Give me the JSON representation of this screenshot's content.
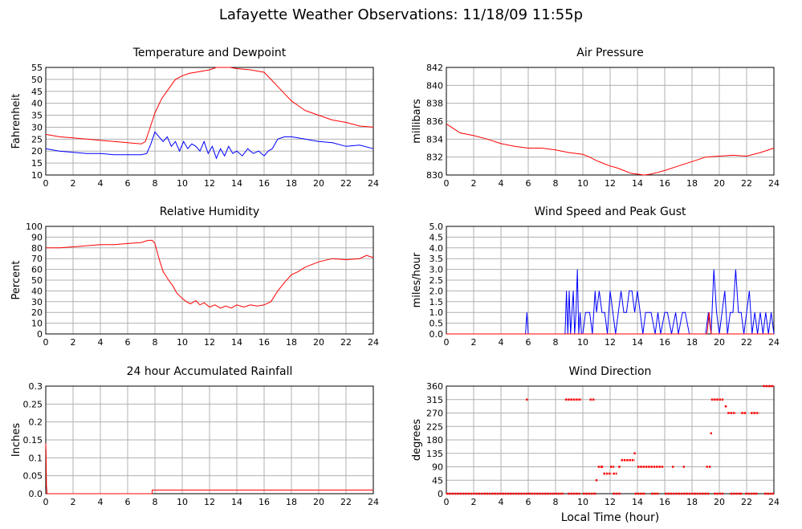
{
  "page_title": "Lafayette Weather Observations: 11/18/09 11:55p",
  "shared_xlabel": "Local Time (hour)",
  "colors": {
    "red": "#ff0000",
    "blue": "#0000ff",
    "grid": "#b0b0b0"
  },
  "chart_data": [
    {
      "id": "temp",
      "type": "line",
      "title": "Temperature and Dewpoint",
      "xlabel": "",
      "ylabel": "Fahrenheit",
      "xlim": [
        0,
        24
      ],
      "ylim": [
        10,
        55
      ],
      "xticks": [
        "0",
        "2",
        "4",
        "6",
        "8",
        "10",
        "12",
        "14",
        "16",
        "18",
        "20",
        "22",
        "24"
      ],
      "yticks": [
        "10",
        "15",
        "20",
        "25",
        "30",
        "35",
        "40",
        "45",
        "50",
        "55"
      ],
      "series": [
        {
          "color": "#ff0000",
          "x": [
            0,
            1,
            2,
            3,
            4,
            5,
            6,
            7,
            7.3,
            7.6,
            8,
            8.5,
            9,
            9.5,
            10,
            10.5,
            11,
            12,
            12.5,
            13,
            13.5,
            14,
            15,
            16,
            16.5,
            17,
            17.5,
            18,
            19,
            20,
            21,
            22,
            23,
            24
          ],
          "y": [
            27,
            26,
            25.5,
            25,
            24.5,
            24,
            23.5,
            23,
            24,
            29,
            36,
            42,
            46,
            50,
            51.5,
            52.5,
            53,
            54,
            55,
            55,
            55,
            54.5,
            54,
            53,
            50,
            47,
            44,
            41,
            37,
            35,
            33,
            32,
            30.5,
            30
          ]
        },
        {
          "color": "#0000ff",
          "x": [
            0,
            1,
            2,
            3,
            4,
            5,
            6,
            7,
            7.4,
            7.7,
            8,
            8.3,
            8.6,
            8.9,
            9.2,
            9.5,
            9.8,
            10.1,
            10.4,
            10.7,
            11,
            11.3,
            11.6,
            11.9,
            12.2,
            12.5,
            12.8,
            13.1,
            13.4,
            13.7,
            14,
            14.4,
            14.8,
            15.2,
            15.6,
            16,
            16.3,
            16.6,
            17,
            17.5,
            18,
            19,
            20,
            21,
            22,
            23,
            24
          ],
          "y": [
            21,
            20,
            19.5,
            19,
            19,
            18.5,
            18.5,
            18.5,
            19,
            23,
            28,
            26,
            24,
            26,
            22,
            24,
            20,
            24,
            21,
            23,
            22,
            20,
            24,
            19,
            22,
            17,
            21,
            18,
            22,
            19,
            20,
            18,
            21,
            19,
            20,
            18,
            20,
            21,
            25,
            26,
            26,
            25,
            24,
            23.5,
            22,
            22.5,
            21
          ]
        }
      ]
    },
    {
      "id": "pressure",
      "type": "line",
      "title": "Air Pressure",
      "xlabel": "",
      "ylabel": "millibars",
      "xlim": [
        0,
        24
      ],
      "ylim": [
        830,
        842
      ],
      "xticks": [
        "0",
        "2",
        "4",
        "6",
        "8",
        "10",
        "12",
        "14",
        "16",
        "18",
        "20",
        "22",
        "24"
      ],
      "yticks": [
        "830",
        "832",
        "834",
        "836",
        "838",
        "840",
        "842"
      ],
      "series": [
        {
          "color": "#ff0000",
          "x": [
            0,
            0.5,
            1,
            2,
            3,
            4,
            5,
            6,
            7,
            8,
            9,
            10,
            10.5,
            11,
            11.5,
            12,
            12.5,
            13,
            13.5,
            14,
            14.5,
            15,
            15.5,
            16,
            17,
            18,
            19,
            20,
            21,
            22,
            23,
            24
          ],
          "y": [
            835.7,
            835.2,
            834.7,
            834.4,
            834,
            833.5,
            833.2,
            833,
            833,
            832.8,
            832.5,
            832.3,
            832,
            831.6,
            831.3,
            831,
            830.8,
            830.5,
            830.2,
            830.1,
            830,
            830.1,
            830.3,
            830.5,
            831,
            831.5,
            832,
            832.1,
            832.2,
            832.1,
            832.5,
            833
          ]
        }
      ]
    },
    {
      "id": "humidity",
      "type": "line",
      "title": "Relative Humidity",
      "xlabel": "",
      "ylabel": "Percent",
      "xlim": [
        0,
        24
      ],
      "ylim": [
        0,
        100
      ],
      "xticks": [
        "0",
        "2",
        "4",
        "6",
        "8",
        "10",
        "12",
        "14",
        "16",
        "18",
        "20",
        "22",
        "24"
      ],
      "yticks": [
        "0",
        "10",
        "20",
        "30",
        "40",
        "50",
        "60",
        "70",
        "80",
        "90",
        "100"
      ],
      "series": [
        {
          "color": "#ff0000",
          "x": [
            0,
            1,
            2,
            3,
            4,
            5,
            6,
            7,
            7.5,
            7.8,
            8,
            8.3,
            8.6,
            9,
            9.3,
            9.6,
            10,
            10.3,
            10.6,
            11,
            11.3,
            11.6,
            12,
            12.4,
            12.8,
            13.2,
            13.6,
            14,
            14.5,
            15,
            15.5,
            16,
            16.5,
            17,
            17.5,
            18,
            18.5,
            19,
            20,
            21,
            22,
            23,
            23.5,
            24
          ],
          "y": [
            80,
            80,
            81,
            82,
            83,
            83,
            84,
            85,
            87,
            87,
            84,
            70,
            58,
            50,
            45,
            38,
            33,
            30,
            28,
            31,
            27,
            29,
            25,
            27,
            24,
            26,
            24,
            27,
            25,
            27,
            26,
            27,
            30,
            40,
            48,
            55,
            58,
            62,
            67,
            70,
            69,
            70,
            73,
            71
          ]
        }
      ]
    },
    {
      "id": "wind",
      "type": "line",
      "title": "Wind Speed and Peak Gust",
      "xlabel": "",
      "ylabel": "miles/hour",
      "xlim": [
        0,
        24
      ],
      "ylim": [
        0,
        5
      ],
      "xticks": [
        "0",
        "2",
        "4",
        "6",
        "8",
        "10",
        "12",
        "14",
        "16",
        "18",
        "20",
        "22",
        "24"
      ],
      "yticks": [
        "0.0",
        "0.5",
        "1.0",
        "1.5",
        "2.0",
        "2.5",
        "3.0",
        "3.5",
        "4.0",
        "4.5",
        "5.0"
      ],
      "series": [
        {
          "color": "#0000ff",
          "x": [
            0,
            5.8,
            5.9,
            6.0,
            8.7,
            8.8,
            8.9,
            9.0,
            9.1,
            9.2,
            9.3,
            9.4,
            9.5,
            9.6,
            9.7,
            9.8,
            9.9,
            10.0,
            10.2,
            10.5,
            10.7,
            10.8,
            10.9,
            11.0,
            11.2,
            11.4,
            11.6,
            11.8,
            12.0,
            12.2,
            12.4,
            12.6,
            12.8,
            13.0,
            13.2,
            13.4,
            13.6,
            13.8,
            14.0,
            14.2,
            14.4,
            14.6,
            15.0,
            15.3,
            15.5,
            15.7,
            16.0,
            16.2,
            16.5,
            16.8,
            17.0,
            17.3,
            17.5,
            17.8,
            19.0,
            19.2,
            19.4,
            19.6,
            19.8,
            20.0,
            20.2,
            20.4,
            20.6,
            20.8,
            21.0,
            21.2,
            21.4,
            21.6,
            21.8,
            22.0,
            22.2,
            22.4,
            22.6,
            22.8,
            23.0,
            23.2,
            23.4,
            23.6,
            23.8,
            24.0
          ],
          "y": [
            0,
            0,
            1,
            0,
            0,
            2,
            0,
            2,
            0,
            1,
            2,
            0,
            1,
            3,
            0,
            1,
            0,
            0,
            1,
            1,
            0,
            1,
            2,
            1,
            2,
            1,
            1,
            0,
            2,
            1,
            0,
            1,
            2,
            1,
            1,
            2,
            2,
            1,
            2,
            1,
            0,
            1,
            1,
            0,
            1,
            0,
            1,
            1,
            0,
            1,
            0,
            1,
            1,
            0,
            0,
            1,
            0,
            3,
            1,
            0,
            1,
            2,
            0,
            1,
            1,
            3,
            1,
            1,
            0,
            1,
            2,
            0,
            1,
            0,
            1,
            0,
            1,
            0,
            1,
            0
          ]
        },
        {
          "color": "#ff0000",
          "x": [
            0,
            19.1,
            19.25,
            19.4,
            24
          ],
          "y": [
            0,
            0,
            1,
            0,
            0
          ]
        }
      ]
    },
    {
      "id": "rain",
      "type": "line",
      "title": "24 hour Accumulated Rainfall",
      "xlabel": "",
      "ylabel": "Inches",
      "xlim": [
        0,
        24
      ],
      "ylim": [
        0,
        0.3
      ],
      "xticks": [
        "0",
        "2",
        "4",
        "6",
        "8",
        "10",
        "12",
        "14",
        "16",
        "18",
        "20",
        "22",
        "24"
      ],
      "yticks": [
        "0.0",
        "0.05",
        "0.1",
        "0.15",
        "0.2",
        "0.25",
        "0.3"
      ],
      "series": [
        {
          "color": "#ff0000",
          "x": [
            0,
            0.02,
            0.05,
            0.1,
            7.8,
            7.8,
            24
          ],
          "y": [
            0.14,
            0.12,
            0.02,
            0,
            0,
            0.01,
            0.01
          ]
        }
      ]
    },
    {
      "id": "direction",
      "type": "scatter",
      "title": "Wind Direction",
      "xlabel": "Local Time (hour)",
      "ylabel": "degrees",
      "xlim": [
        0,
        24
      ],
      "ylim": [
        0,
        360
      ],
      "xticks": [
        "0",
        "2",
        "4",
        "6",
        "8",
        "10",
        "12",
        "14",
        "16",
        "18",
        "20",
        "22",
        "24"
      ],
      "yticks": [
        "0",
        "45",
        "90",
        "135",
        "180",
        "225",
        "270",
        "315",
        "360"
      ],
      "segments": [
        {
          "x": [
            0,
            8.6
          ],
          "y": 0
        },
        {
          "x": [
            8.9,
            9.8
          ],
          "y": 0
        },
        {
          "x": [
            10.0,
            11.0
          ],
          "y": 0
        },
        {
          "x": [
            12.2,
            12.8
          ],
          "y": 0
        },
        {
          "x": [
            13.8,
            14.6
          ],
          "y": 0
        },
        {
          "x": [
            15.0,
            15.6
          ],
          "y": 0
        },
        {
          "x": [
            16.0,
            19.3
          ],
          "y": 0
        },
        {
          "x": [
            19.6,
            20.3
          ],
          "y": 0
        },
        {
          "x": [
            20.8,
            21.6
          ],
          "y": 0
        },
        {
          "x": [
            21.9,
            22.8
          ],
          "y": 0
        },
        {
          "x": [
            23.3,
            24.0
          ],
          "y": 0
        },
        {
          "x": [
            8.7,
            9.9
          ],
          "y": 315
        },
        {
          "x": [
            10.5,
            10.9
          ],
          "y": 315
        },
        {
          "x": [
            19.4,
            20.3
          ],
          "y": 315
        },
        {
          "x": [
            20.4,
            20.6
          ],
          "y": 292
        },
        {
          "x": [
            20.6,
            21.2
          ],
          "y": 270
        },
        {
          "x": [
            21.6,
            22.0
          ],
          "y": 270
        },
        {
          "x": [
            22.3,
            22.9
          ],
          "y": 270
        },
        {
          "x": [
            23.2,
            24.0
          ],
          "y": 360
        },
        {
          "x": [
            11.1,
            11.5
          ],
          "y": 90
        },
        {
          "x": [
            11.5,
            12.1
          ],
          "y": 67
        },
        {
          "x": [
            12.0,
            12.3
          ],
          "y": 90
        },
        {
          "x": [
            12.2,
            12.5
          ],
          "y": 67
        },
        {
          "x": [
            12.6,
            12.8
          ],
          "y": 90
        },
        {
          "x": [
            12.8,
            13.8
          ],
          "y": 112
        },
        {
          "x": [
            14.0,
            15.9
          ],
          "y": 90
        }
      ],
      "points": [
        {
          "x": 5.9,
          "y": 315
        },
        {
          "x": 11.0,
          "y": 45
        },
        {
          "x": 11.4,
          "y": 90
        },
        {
          "x": 13.8,
          "y": 135
        },
        {
          "x": 16.6,
          "y": 90
        },
        {
          "x": 17.4,
          "y": 90
        },
        {
          "x": 19.1,
          "y": 90
        },
        {
          "x": 19.3,
          "y": 90
        },
        {
          "x": 19.4,
          "y": 202
        },
        {
          "x": 21.6,
          "y": 0
        }
      ]
    }
  ]
}
